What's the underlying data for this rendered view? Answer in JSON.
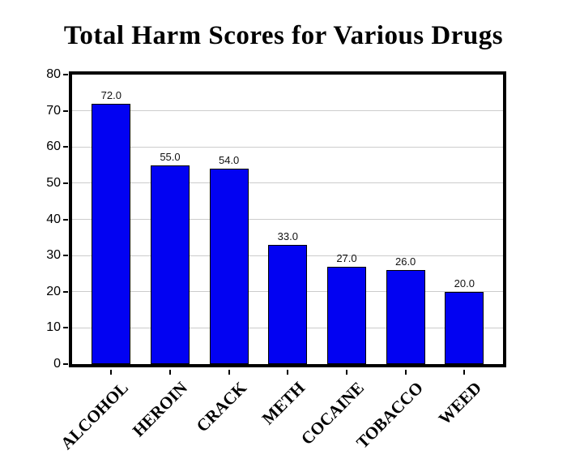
{
  "title": "Total Harm Scores for Various Drugs",
  "chart_data": {
    "type": "bar",
    "title": "Total Harm Scores for Various Drugs",
    "categories": [
      "ALCOHOL",
      "HEROIN",
      "CRACK",
      "METH",
      "COCAINE",
      "TOBACCO",
      "WEED"
    ],
    "values": [
      72,
      55,
      54,
      33,
      27,
      26,
      20
    ],
    "value_labels": [
      "72.0",
      "55.0",
      "54.0",
      "33.0",
      "27.0",
      "26.0",
      "20.0"
    ],
    "xlabel": "",
    "ylabel": "",
    "ylim": [
      0,
      80
    ],
    "yticks": [
      0,
      10,
      20,
      30,
      40,
      50,
      60,
      70,
      80
    ],
    "grid": "horizontal",
    "legend": "none",
    "bar_color": "#0202f2",
    "bar_edge_color": "#000000",
    "gridline_color": "#cccccc",
    "frame_color": "#000000",
    "background_color": "#ffffff"
  }
}
